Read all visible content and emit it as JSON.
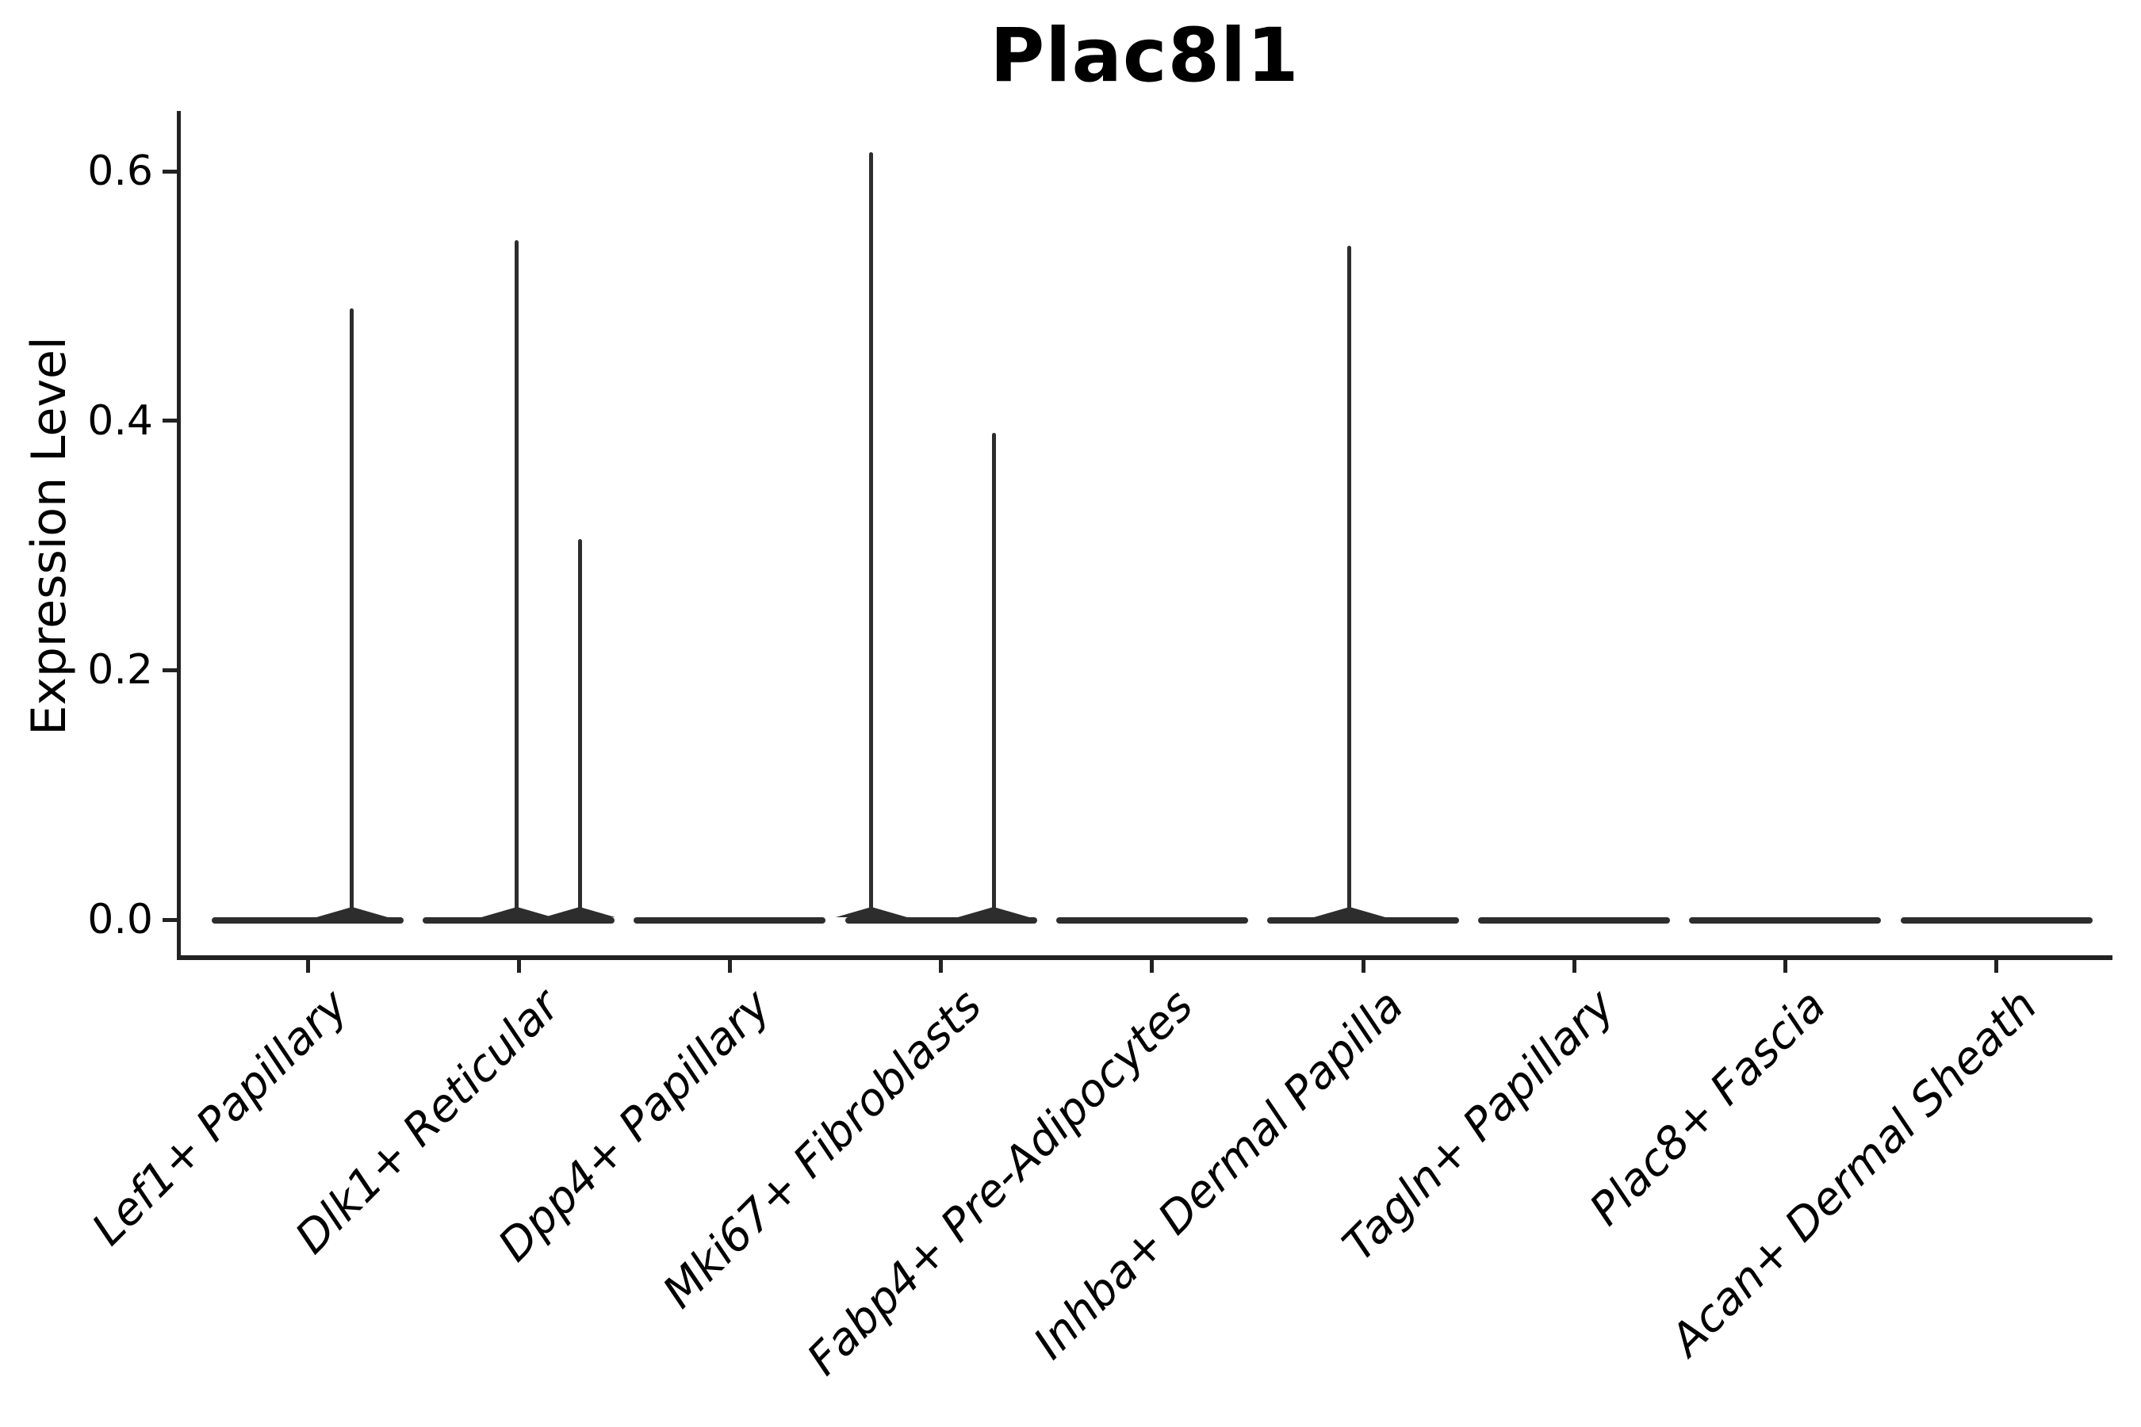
{
  "colors": {
    "background": "#ffffff",
    "text": "#000000",
    "axis_line": "#222222",
    "violin_line": "#2d2d2d"
  },
  "chart_data": {
    "type": "violin",
    "title": "Plac8l1",
    "ylabel": "Expression Level",
    "xlabel": "",
    "grid": false,
    "legend": null,
    "ylim": [
      0,
      0.65
    ],
    "y_ticks": [
      {
        "value": 0.0,
        "label": "0.0"
      },
      {
        "value": 0.2,
        "label": "0.2"
      },
      {
        "value": 0.4,
        "label": "0.4"
      },
      {
        "value": 0.6,
        "label": "0.6"
      }
    ],
    "categories": [
      "Lef1+ Papillary",
      "Dlk1+ Reticular",
      "Dpp4+ Papillary",
      "Mki67+ Fibroblasts",
      "Fabp4+ Pre-Adipocytes",
      "Inhba+ Dermal Papilla",
      "Tagln+ Papillary",
      "Plac8+ Fascia",
      "Acan+ Dermal Sheath"
    ],
    "violins": [
      {
        "category": "Lef1+ Papillary",
        "base_value": 0.0,
        "spikes": [
          {
            "value": 0.49,
            "offset": 0.21
          }
        ]
      },
      {
        "category": "Dlk1+ Reticular",
        "base_value": 0.0,
        "spikes": [
          {
            "value": 0.545,
            "offset": -0.01
          },
          {
            "value": 0.305,
            "offset": 0.29
          }
        ]
      },
      {
        "category": "Dpp4+ Papillary",
        "base_value": 0.0,
        "spikes": []
      },
      {
        "category": "Mki67+ Fibroblasts",
        "base_value": 0.0,
        "spikes": [
          {
            "value": 0.615,
            "offset": -0.33
          },
          {
            "value": 0.39,
            "offset": 0.25
          }
        ]
      },
      {
        "category": "Fabp4+ Pre-Adipocytes",
        "base_value": 0.0,
        "spikes": []
      },
      {
        "category": "Inhba+ Dermal Papilla",
        "base_value": 0.0,
        "spikes": [
          {
            "value": 0.54,
            "offset": -0.065
          }
        ]
      },
      {
        "category": "Tagln+ Papillary",
        "base_value": 0.0,
        "spikes": []
      },
      {
        "category": "Plac8+ Fascia",
        "base_value": 0.0,
        "spikes": []
      },
      {
        "category": "Acan+ Dermal Sheath",
        "base_value": 0.0,
        "spikes": []
      }
    ]
  }
}
